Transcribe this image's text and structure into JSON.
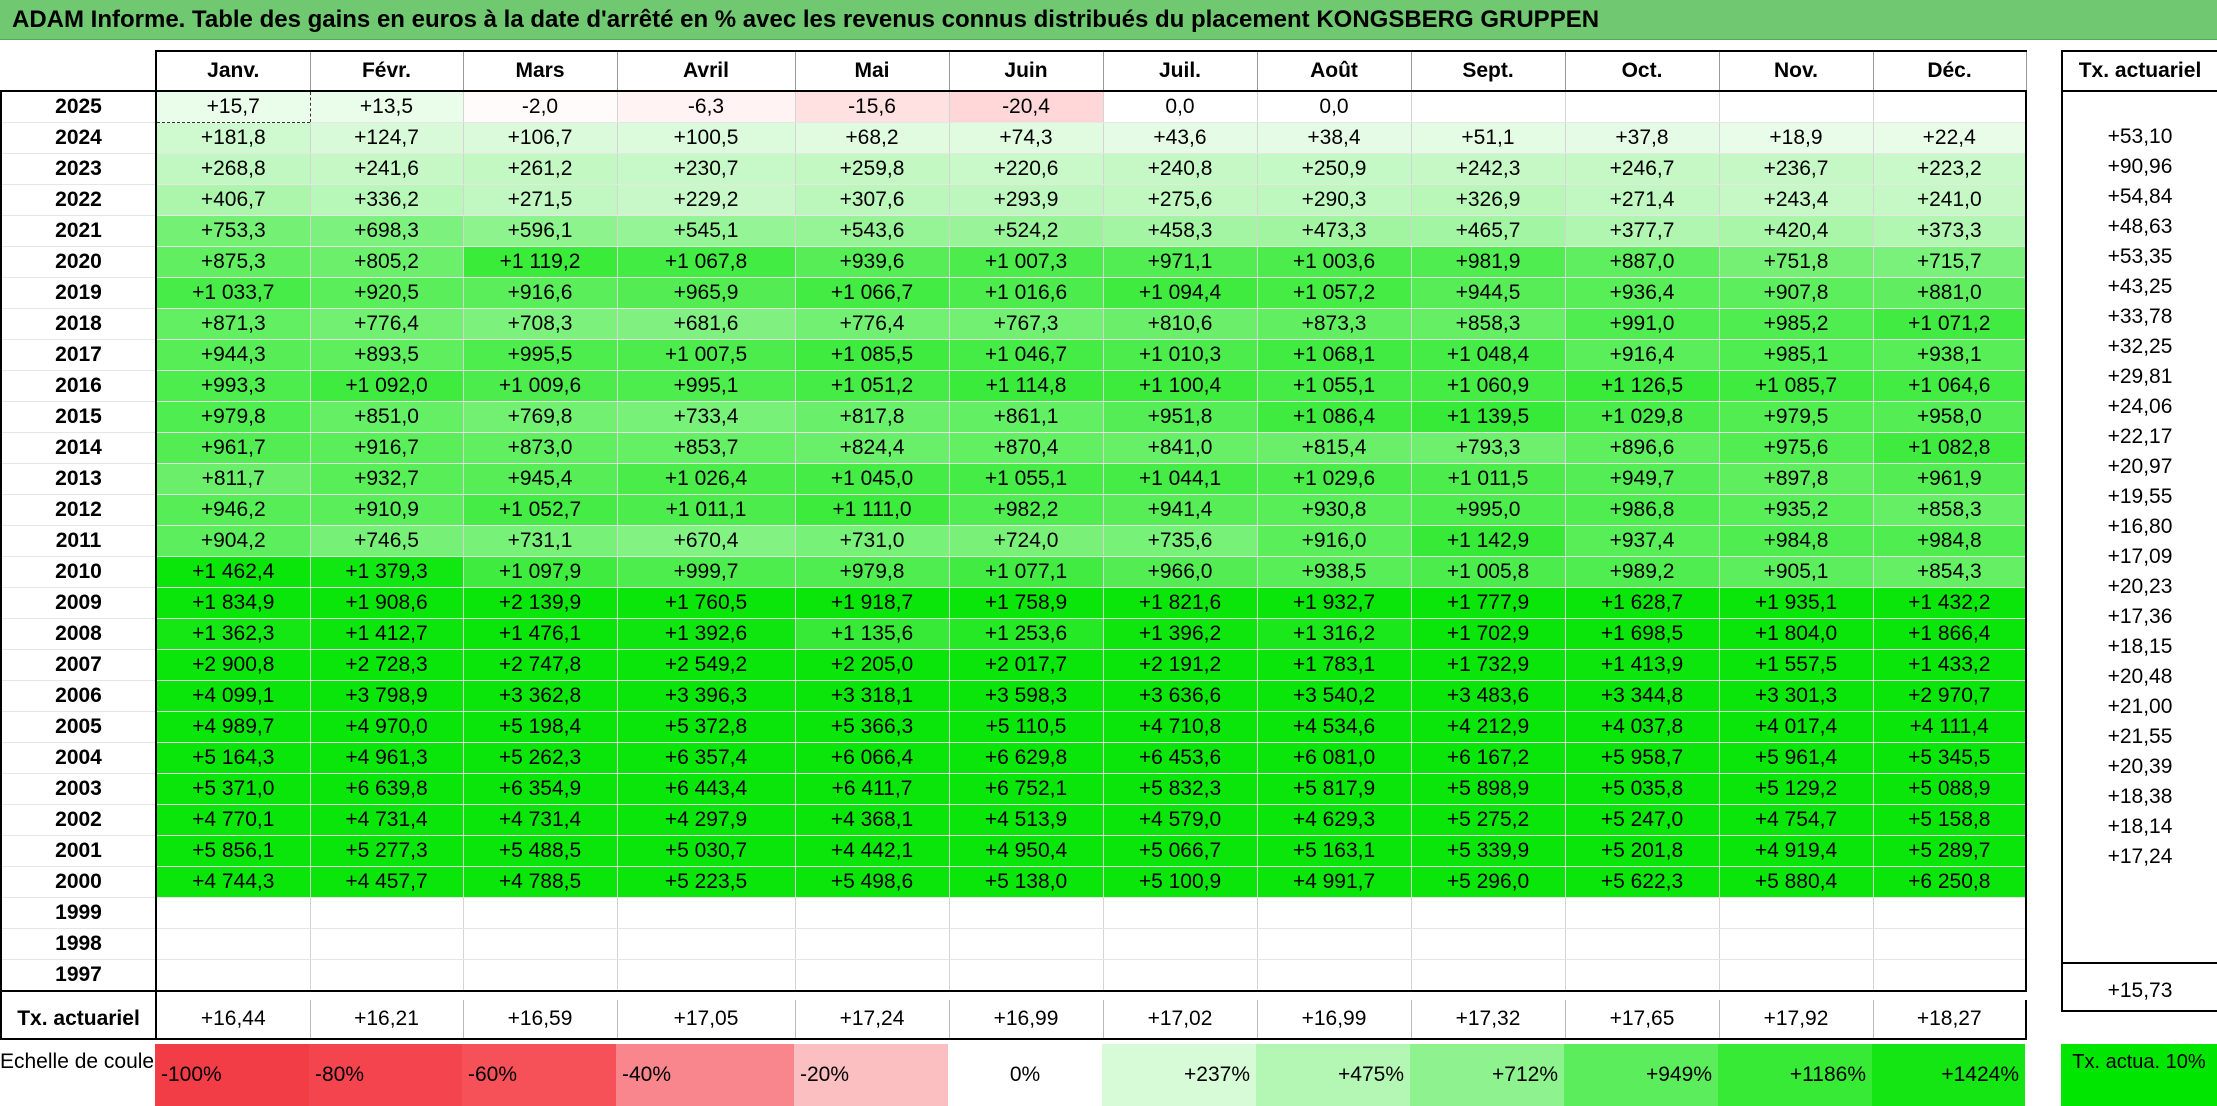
{
  "title": "ADAM Informe. Table des gains en euros à la date d'arrêté en % avec les revenus connus distribués du placement KONGSBERG GRUPPEN",
  "months": [
    "Janv.",
    "Févr.",
    "Mars",
    "Avril",
    "Mai",
    "Juin",
    "Juil.",
    "Août",
    "Sept.",
    "Oct.",
    "Nov.",
    "Déc."
  ],
  "right_header": "Tx. actuariel",
  "rows": [
    {
      "year": "2025",
      "values": [
        "+15,7",
        "+13,5",
        "-2,0",
        "-6,3",
        "-15,6",
        "-20,4",
        "0,0",
        "0,0",
        "",
        "",
        "",
        ""
      ],
      "tx": ""
    },
    {
      "year": "2024",
      "values": [
        "+181,8",
        "+124,7",
        "+106,7",
        "+100,5",
        "+68,2",
        "+74,3",
        "+43,6",
        "+38,4",
        "+51,1",
        "+37,8",
        "+18,9",
        "+22,4"
      ],
      "tx": "+53,10"
    },
    {
      "year": "2023",
      "values": [
        "+268,8",
        "+241,6",
        "+261,2",
        "+230,7",
        "+259,8",
        "+220,6",
        "+240,8",
        "+250,9",
        "+242,3",
        "+246,7",
        "+236,7",
        "+223,2"
      ],
      "tx": "+90,96"
    },
    {
      "year": "2022",
      "values": [
        "+406,7",
        "+336,2",
        "+271,5",
        "+229,2",
        "+307,6",
        "+293,9",
        "+275,6",
        "+290,3",
        "+326,9",
        "+271,4",
        "+243,4",
        "+241,0"
      ],
      "tx": "+54,84"
    },
    {
      "year": "2021",
      "values": [
        "+753,3",
        "+698,3",
        "+596,1",
        "+545,1",
        "+543,6",
        "+524,2",
        "+458,3",
        "+473,3",
        "+465,7",
        "+377,7",
        "+420,4",
        "+373,3"
      ],
      "tx": "+48,63"
    },
    {
      "year": "2020",
      "values": [
        "+875,3",
        "+805,2",
        "+1 119,2",
        "+1 067,8",
        "+939,6",
        "+1 007,3",
        "+971,1",
        "+1 003,6",
        "+981,9",
        "+887,0",
        "+751,8",
        "+715,7"
      ],
      "tx": "+53,35"
    },
    {
      "year": "2019",
      "values": [
        "+1 033,7",
        "+920,5",
        "+916,6",
        "+965,9",
        "+1 066,7",
        "+1 016,6",
        "+1 094,4",
        "+1 057,2",
        "+944,5",
        "+936,4",
        "+907,8",
        "+881,0"
      ],
      "tx": "+43,25"
    },
    {
      "year": "2018",
      "values": [
        "+871,3",
        "+776,4",
        "+708,3",
        "+681,6",
        "+776,4",
        "+767,3",
        "+810,6",
        "+873,3",
        "+858,3",
        "+991,0",
        "+985,2",
        "+1 071,2"
      ],
      "tx": "+33,78"
    },
    {
      "year": "2017",
      "values": [
        "+944,3",
        "+893,5",
        "+995,5",
        "+1 007,5",
        "+1 085,5",
        "+1 046,7",
        "+1 010,3",
        "+1 068,1",
        "+1 048,4",
        "+916,4",
        "+985,1",
        "+938,1"
      ],
      "tx": "+32,25"
    },
    {
      "year": "2016",
      "values": [
        "+993,3",
        "+1 092,0",
        "+1 009,6",
        "+995,1",
        "+1 051,2",
        "+1 114,8",
        "+1 100,4",
        "+1 055,1",
        "+1 060,9",
        "+1 126,5",
        "+1 085,7",
        "+1 064,6"
      ],
      "tx": "+29,81"
    },
    {
      "year": "2015",
      "values": [
        "+979,8",
        "+851,0",
        "+769,8",
        "+733,4",
        "+817,8",
        "+861,1",
        "+951,8",
        "+1 086,4",
        "+1 139,5",
        "+1 029,8",
        "+979,5",
        "+958,0"
      ],
      "tx": "+24,06"
    },
    {
      "year": "2014",
      "values": [
        "+961,7",
        "+916,7",
        "+873,0",
        "+853,7",
        "+824,4",
        "+870,4",
        "+841,0",
        "+815,4",
        "+793,3",
        "+896,6",
        "+975,6",
        "+1 082,8"
      ],
      "tx": "+22,17"
    },
    {
      "year": "2013",
      "values": [
        "+811,7",
        "+932,7",
        "+945,4",
        "+1 026,4",
        "+1 045,0",
        "+1 055,1",
        "+1 044,1",
        "+1 029,6",
        "+1 011,5",
        "+949,7",
        "+897,8",
        "+961,9"
      ],
      "tx": "+20,97"
    },
    {
      "year": "2012",
      "values": [
        "+946,2",
        "+910,9",
        "+1 052,7",
        "+1 011,1",
        "+1 111,0",
        "+982,2",
        "+941,4",
        "+930,8",
        "+995,0",
        "+986,8",
        "+935,2",
        "+858,3"
      ],
      "tx": "+19,55"
    },
    {
      "year": "2011",
      "values": [
        "+904,2",
        "+746,5",
        "+731,1",
        "+670,4",
        "+731,0",
        "+724,0",
        "+735,6",
        "+916,0",
        "+1 142,9",
        "+937,4",
        "+984,8",
        "+984,8"
      ],
      "tx": "+16,80"
    },
    {
      "year": "2010",
      "values": [
        "+1 462,4",
        "+1 379,3",
        "+1 097,9",
        "+999,7",
        "+979,8",
        "+1 077,1",
        "+966,0",
        "+938,5",
        "+1 005,8",
        "+989,2",
        "+905,1",
        "+854,3"
      ],
      "tx": "+17,09"
    },
    {
      "year": "2009",
      "values": [
        "+1 834,9",
        "+1 908,6",
        "+2 139,9",
        "+1 760,5",
        "+1 918,7",
        "+1 758,9",
        "+1 821,6",
        "+1 932,7",
        "+1 777,9",
        "+1 628,7",
        "+1 935,1",
        "+1 432,2"
      ],
      "tx": "+20,23"
    },
    {
      "year": "2008",
      "values": [
        "+1 362,3",
        "+1 412,7",
        "+1 476,1",
        "+1 392,6",
        "+1 135,6",
        "+1 253,6",
        "+1 396,2",
        "+1 316,2",
        "+1 702,9",
        "+1 698,5",
        "+1 804,0",
        "+1 866,4"
      ],
      "tx": "+17,36"
    },
    {
      "year": "2007",
      "values": [
        "+2 900,8",
        "+2 728,3",
        "+2 747,8",
        "+2 549,2",
        "+2 205,0",
        "+2 017,7",
        "+2 191,2",
        "+1 783,1",
        "+1 732,9",
        "+1 413,9",
        "+1 557,5",
        "+1 433,2"
      ],
      "tx": "+18,15"
    },
    {
      "year": "2006",
      "values": [
        "+4 099,1",
        "+3 798,9",
        "+3 362,8",
        "+3 396,3",
        "+3 318,1",
        "+3 598,3",
        "+3 636,6",
        "+3 540,2",
        "+3 483,6",
        "+3 344,8",
        "+3 301,3",
        "+2 970,7"
      ],
      "tx": "+20,48"
    },
    {
      "year": "2005",
      "values": [
        "+4 989,7",
        "+4 970,0",
        "+5 198,4",
        "+5 372,8",
        "+5 366,3",
        "+5 110,5",
        "+4 710,8",
        "+4 534,6",
        "+4 212,9",
        "+4 037,8",
        "+4 017,4",
        "+4 111,4"
      ],
      "tx": "+21,00"
    },
    {
      "year": "2004",
      "values": [
        "+5 164,3",
        "+4 961,3",
        "+5 262,3",
        "+6 357,4",
        "+6 066,4",
        "+6 629,8",
        "+6 453,6",
        "+6 081,0",
        "+6 167,2",
        "+5 958,7",
        "+5 961,4",
        "+5 345,5"
      ],
      "tx": "+21,55"
    },
    {
      "year": "2003",
      "values": [
        "+5 371,0",
        "+6 639,8",
        "+6 354,9",
        "+6 443,4",
        "+6 411,7",
        "+6 752,1",
        "+5 832,3",
        "+5 817,9",
        "+5 898,9",
        "+5 035,8",
        "+5 129,2",
        "+5 088,9"
      ],
      "tx": "+20,39"
    },
    {
      "year": "2002",
      "values": [
        "+4 770,1",
        "+4 731,4",
        "+4 731,4",
        "+4 297,9",
        "+4 368,1",
        "+4 513,9",
        "+4 579,0",
        "+4 629,3",
        "+5 275,2",
        "+5 247,0",
        "+4 754,7",
        "+5 158,8"
      ],
      "tx": "+18,38"
    },
    {
      "year": "2001",
      "values": [
        "+5 856,1",
        "+5 277,3",
        "+5 488,5",
        "+5 030,7",
        "+4 442,1",
        "+4 950,4",
        "+5 066,7",
        "+5 163,1",
        "+5 339,9",
        "+5 201,8",
        "+4 919,4",
        "+5 289,7"
      ],
      "tx": "+18,14"
    },
    {
      "year": "2000",
      "values": [
        "+4 744,3",
        "+4 457,7",
        "+4 788,5",
        "+5 223,5",
        "+5 498,6",
        "+5 138,0",
        "+5 100,9",
        "+4 991,7",
        "+5 296,0",
        "+5 622,3",
        "+5 880,4",
        "+6 250,8"
      ],
      "tx": "+17,24"
    },
    {
      "year": "1999",
      "values": [
        "",
        "",
        "",
        "",
        "",
        "",
        "",
        "",
        "",
        "",
        "",
        ""
      ],
      "tx": ""
    },
    {
      "year": "1998",
      "values": [
        "",
        "",
        "",
        "",
        "",
        "",
        "",
        "",
        "",
        "",
        "",
        ""
      ],
      "tx": ""
    },
    {
      "year": "1997",
      "values": [
        "",
        "",
        "",
        "",
        "",
        "",
        "",
        "",
        "",
        "",
        "",
        ""
      ],
      "tx": ""
    }
  ],
  "footer": {
    "label": "Tx. actuariel",
    "values": [
      "+16,44",
      "+16,21",
      "+16,59",
      "+17,05",
      "+17,24",
      "+16,99",
      "+17,02",
      "+16,99",
      "+17,32",
      "+17,65",
      "+17,92",
      "+18,27"
    ],
    "total": "+15,73"
  },
  "legend": {
    "label": "Echelle de couleur",
    "items": [
      {
        "text": "-100%",
        "color": "#f23c46"
      },
      {
        "text": "-80%",
        "color": "#f4444e"
      },
      {
        "text": "-60%",
        "color": "#f65058"
      },
      {
        "text": "-40%",
        "color": "#f8868c"
      },
      {
        "text": "-20%",
        "color": "#fbbfc2"
      },
      {
        "text": "0%",
        "color": "#ffffff"
      },
      {
        "text": "+237%",
        "color": "#d6fbd6"
      },
      {
        "text": "+475%",
        "color": "#b4f7b4"
      },
      {
        "text": "+712%",
        "color": "#8ef28e"
      },
      {
        "text": "+949%",
        "color": "#5ced5c"
      },
      {
        "text": "+1186%",
        "color": "#36ea36"
      },
      {
        "text": "+1424%",
        "color": "#14e614"
      }
    ],
    "tx_label": "Tx. actua. 10%",
    "tx_color": "#00e600"
  }
}
